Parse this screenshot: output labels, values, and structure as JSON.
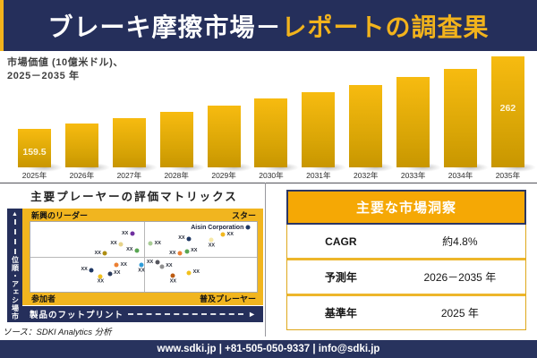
{
  "header": {
    "title_white": "ブレーキ摩擦市場－",
    "title_gold": "レポートの調査果"
  },
  "bar_chart": {
    "subtitle_line1": "市場価値 (10億米ドル)、",
    "subtitle_line2": "2025－2035 年"
  },
  "chart_data": [
    {
      "type": "bar",
      "title": "市場価値 (10億米ドル)、2025－2035 年",
      "categories": [
        "2025年",
        "2026年",
        "2027年",
        "2028年",
        "2029年",
        "2030年",
        "2031年",
        "2032年",
        "2033年",
        "2034年",
        "2035年"
      ],
      "values": [
        159.5,
        167,
        175,
        183.5,
        192.5,
        202.5,
        211.5,
        221.5,
        233,
        244,
        262
      ],
      "labels": [
        "159.5",
        "",
        "",
        "",
        "",
        "",
        "",
        "",
        "",
        "",
        "262"
      ],
      "ylabel": "市場価値 (10億米ドル)",
      "xlabel": "",
      "value_range_shown": [
        159.5,
        262
      ],
      "bar_color": "#D9A506",
      "grid": false,
      "legend": false
    },
    {
      "type": "scatter",
      "title": "主要プレーヤーの評価マトリックス",
      "xlabel": "製品のフットプリント",
      "ylabel": "市場シェア・順位",
      "quadrant_labels": {
        "top_left": "新興のリーダー",
        "top_right": "スター",
        "bottom_left": "参加者",
        "bottom_right": "普及プレーヤー"
      },
      "annotation": "Aisin Corporation",
      "points": [
        {
          "x": 45,
          "y": 17,
          "color": "#7030A0",
          "label": "XX",
          "label_side": "left"
        },
        {
          "x": 40,
          "y": 32,
          "color": "#E6D38A",
          "label": "XX",
          "label_side": "left"
        },
        {
          "x": 47,
          "y": 41,
          "color": "#58A552",
          "label": "XX",
          "label_side": "left"
        },
        {
          "x": 33,
          "y": 45,
          "color": "#AD8D12",
          "label": "XX",
          "label_side": "left"
        },
        {
          "x": 53,
          "y": 31,
          "color": "#A8CC96",
          "label": "XX",
          "label_side": "right"
        },
        {
          "x": 70,
          "y": 24,
          "color": "#1F3864",
          "label": "XX",
          "label_side": "left"
        },
        {
          "x": 80,
          "y": 26,
          "color": "#F6E8A8",
          "label": "XX",
          "label_side": "below"
        },
        {
          "x": 85,
          "y": 18,
          "color": "#F2B81F",
          "label": "XX",
          "label_side": "right"
        },
        {
          "x": 96,
          "y": 8,
          "color": "#1F3864",
          "label": "Aisin Corporation",
          "label_side": "left",
          "emphasis": true
        },
        {
          "x": 66,
          "y": 45,
          "color": "#EC8033",
          "label": "XX",
          "label_side": "left"
        },
        {
          "x": 69,
          "y": 42,
          "color": "#58A552",
          "label": "XX",
          "label_side": "right"
        },
        {
          "x": 38,
          "y": 62,
          "color": "#EC8033",
          "label": "XX",
          "label_side": "right"
        },
        {
          "x": 49,
          "y": 62,
          "color": "#2F9CD8",
          "label": "XX",
          "label_side": "below"
        },
        {
          "x": 27,
          "y": 69,
          "color": "#1F3864",
          "label": "XX",
          "label_side": "left"
        },
        {
          "x": 35,
          "y": 74,
          "color": "#2A3A5C",
          "label": "XX",
          "label_side": "right"
        },
        {
          "x": 31,
          "y": 78,
          "color": "#F2C11E",
          "label": "XX",
          "label_side": "below"
        },
        {
          "x": 56,
          "y": 58,
          "color": "#55555D",
          "label": "XX",
          "label_side": "left"
        },
        {
          "x": 58,
          "y": 64,
          "color": "#8F8F8F",
          "label": "XX",
          "label_side": "right"
        },
        {
          "x": 63,
          "y": 77,
          "color": "#BC5B12",
          "label": "XX",
          "label_side": "below"
        },
        {
          "x": 70,
          "y": 73,
          "color": "#F2C11E",
          "label": "XX",
          "label_side": "right"
        }
      ]
    }
  ],
  "matrix": {
    "title": "主要プレーヤーの評価マトリックス",
    "x_axis": "製品のフットプリント",
    "y_axis": "市場シェア・順位",
    "quadrants": {
      "top_left": "新興のリーダー",
      "top_right": "スター",
      "bottom_left": "参加者",
      "bottom_right": "普及プレーヤー"
    }
  },
  "insights": {
    "title": "主要な市場洞察",
    "rows": [
      {
        "label": "CAGR",
        "value": "約4.8%"
      },
      {
        "label": "予測年",
        "value": "2026－2035 年"
      },
      {
        "label": "基準年",
        "value": "2025 年"
      }
    ]
  },
  "source_note": "ソース：SDKI Analytics 分析",
  "footer": {
    "text": "www.sdki.jp | +81-505-050-9337 | info@sdki.jp"
  },
  "icons": {
    "up_arrow": "▲",
    "right_arrow": "►"
  },
  "colors": {
    "navy": "#252F5B",
    "panel_gold": "#F1B51F",
    "header_amber": "#F5A805",
    "bar_gradient_top": "#F7BB10",
    "bar_gradient_bottom": "#C89600",
    "title_accent": "#F2B31C"
  }
}
